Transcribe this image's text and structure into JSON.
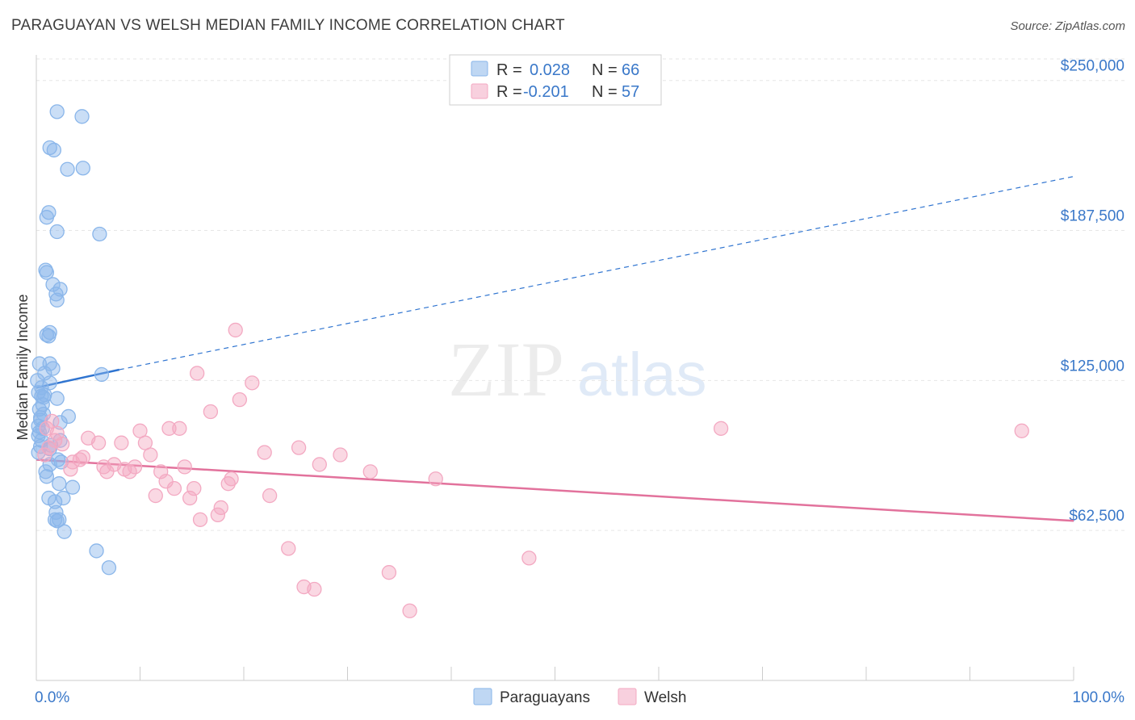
{
  "title": "PARAGUAYAN VS WELSH MEDIAN FAMILY INCOME CORRELATION CHART",
  "source": "Source: ZipAtlas.com",
  "watermark": {
    "zip": "ZIP",
    "atlas": "atlas"
  },
  "legend": {
    "r_label": "R =",
    "n_label": "N =",
    "rows": [
      {
        "r": "0.028",
        "n": "66",
        "color": "#8ab6ea"
      },
      {
        "r": "-0.201",
        "n": "57",
        "color": "#f3a9c2"
      }
    ]
  },
  "bottom_legend": [
    "Paraguayans",
    "Welsh"
  ],
  "chart_data": {
    "type": "scatter",
    "title": "PARAGUAYAN VS WELSH MEDIAN FAMILY INCOME CORRELATION CHART",
    "xlabel": "",
    "ylabel": "Median Family Income",
    "xlim": [
      0,
      100
    ],
    "ylim": [
      0,
      260000
    ],
    "x_tick_labels": [
      "0.0%",
      "100.0%"
    ],
    "y_ticks": [
      62500,
      125000,
      187500,
      250000
    ],
    "y_tick_labels": [
      "$62,500",
      "$125,000",
      "$187,500",
      "$250,000"
    ],
    "grid": true,
    "series": [
      {
        "name": "Paraguayans",
        "color": "#8ab6ea",
        "line_color": "#2f74d0",
        "trend": {
          "x0": 0,
          "y0": 122000,
          "x_solid_end": 8,
          "y_solid_end": 129500,
          "x1": 100,
          "y1": 210000
        },
        "points": [
          [
            2.0,
            237000
          ],
          [
            4.4,
            235000
          ],
          [
            1.3,
            222000
          ],
          [
            1.7,
            221000
          ],
          [
            3.0,
            213000
          ],
          [
            4.5,
            213500
          ],
          [
            1.2,
            195000
          ],
          [
            1.0,
            193000
          ],
          [
            2.0,
            187000
          ],
          [
            6.1,
            186000
          ],
          [
            0.9,
            171000
          ],
          [
            1.0,
            170000
          ],
          [
            1.6,
            165000
          ],
          [
            2.3,
            163000
          ],
          [
            1.9,
            161000
          ],
          [
            2.0,
            158500
          ],
          [
            1.3,
            145000
          ],
          [
            1.0,
            144000
          ],
          [
            1.2,
            143500
          ],
          [
            0.3,
            132000
          ],
          [
            1.3,
            132000
          ],
          [
            1.6,
            130000
          ],
          [
            0.8,
            128000
          ],
          [
            6.3,
            127500
          ],
          [
            1.3,
            124000
          ],
          [
            0.5,
            122000
          ],
          [
            0.2,
            120000
          ],
          [
            0.5,
            118500
          ],
          [
            0.7,
            118000
          ],
          [
            2.0,
            117500
          ],
          [
            0.6,
            115000
          ],
          [
            0.3,
            113000
          ],
          [
            0.7,
            111000
          ],
          [
            3.1,
            110000
          ],
          [
            0.4,
            108500
          ],
          [
            2.3,
            107500
          ],
          [
            0.2,
            106000
          ],
          [
            0.6,
            105000
          ],
          [
            0.3,
            103500
          ],
          [
            0.5,
            100000
          ],
          [
            2.3,
            100000
          ],
          [
            0.4,
            97500
          ],
          [
            1.3,
            96500
          ],
          [
            0.2,
            95000
          ],
          [
            2.1,
            92000
          ],
          [
            2.4,
            91000
          ],
          [
            1.3,
            90000
          ],
          [
            0.9,
            87000
          ],
          [
            1.0,
            85000
          ],
          [
            2.2,
            82000
          ],
          [
            3.5,
            80500
          ],
          [
            1.2,
            76000
          ],
          [
            2.6,
            76000
          ],
          [
            1.8,
            74500
          ],
          [
            1.9,
            70000
          ],
          [
            1.8,
            67000
          ],
          [
            2.2,
            67000
          ],
          [
            2.0,
            66500
          ],
          [
            2.7,
            62000
          ],
          [
            5.8,
            54000
          ],
          [
            7.0,
            47000
          ],
          [
            0.1,
            125000
          ],
          [
            0.2,
            102000
          ],
          [
            1.4,
            98000
          ],
          [
            0.8,
            119000
          ],
          [
            0.4,
            109500
          ]
        ]
      },
      {
        "name": "Welsh",
        "color": "#f3a9c2",
        "line_color": "#e2729c",
        "trend": {
          "x0": 0,
          "y0": 92000,
          "x1": 100,
          "y1": 66500
        },
        "points": [
          [
            1.0,
            105000
          ],
          [
            1.5,
            108000
          ],
          [
            2.0,
            103000
          ],
          [
            1.8,
            100000
          ],
          [
            2.5,
            98500
          ],
          [
            1.2,
            97000
          ],
          [
            0.8,
            94000
          ],
          [
            3.5,
            91000
          ],
          [
            4.5,
            93000
          ],
          [
            5.0,
            101000
          ],
          [
            6.0,
            99000
          ],
          [
            6.5,
            89000
          ],
          [
            6.8,
            87000
          ],
          [
            7.5,
            90000
          ],
          [
            8.2,
            99000
          ],
          [
            8.5,
            88000
          ],
          [
            9.0,
            87000
          ],
          [
            9.5,
            89000
          ],
          [
            10.0,
            104000
          ],
          [
            10.5,
            99000
          ],
          [
            11.0,
            94000
          ],
          [
            11.5,
            77000
          ],
          [
            12.0,
            87000
          ],
          [
            12.5,
            83000
          ],
          [
            12.8,
            105000
          ],
          [
            13.3,
            80000
          ],
          [
            13.8,
            105000
          ],
          [
            14.3,
            89000
          ],
          [
            14.8,
            76000
          ],
          [
            15.2,
            80000
          ],
          [
            15.5,
            128000
          ],
          [
            15.8,
            67000
          ],
          [
            16.8,
            112000
          ],
          [
            17.5,
            69000
          ],
          [
            17.8,
            72000
          ],
          [
            18.5,
            82000
          ],
          [
            18.8,
            84000
          ],
          [
            19.2,
            146000
          ],
          [
            19.6,
            117000
          ],
          [
            20.8,
            124000
          ],
          [
            22.0,
            95000
          ],
          [
            22.5,
            77000
          ],
          [
            24.3,
            55000
          ],
          [
            25.3,
            97000
          ],
          [
            25.8,
            39000
          ],
          [
            26.8,
            38000
          ],
          [
            27.3,
            90000
          ],
          [
            29.3,
            94000
          ],
          [
            32.2,
            87000
          ],
          [
            34.0,
            45000
          ],
          [
            36.0,
            29000
          ],
          [
            38.5,
            84000
          ],
          [
            47.5,
            51000
          ],
          [
            66.0,
            105000
          ],
          [
            95.0,
            104000
          ],
          [
            3.3,
            88000
          ],
          [
            4.2,
            92000
          ]
        ]
      }
    ]
  }
}
